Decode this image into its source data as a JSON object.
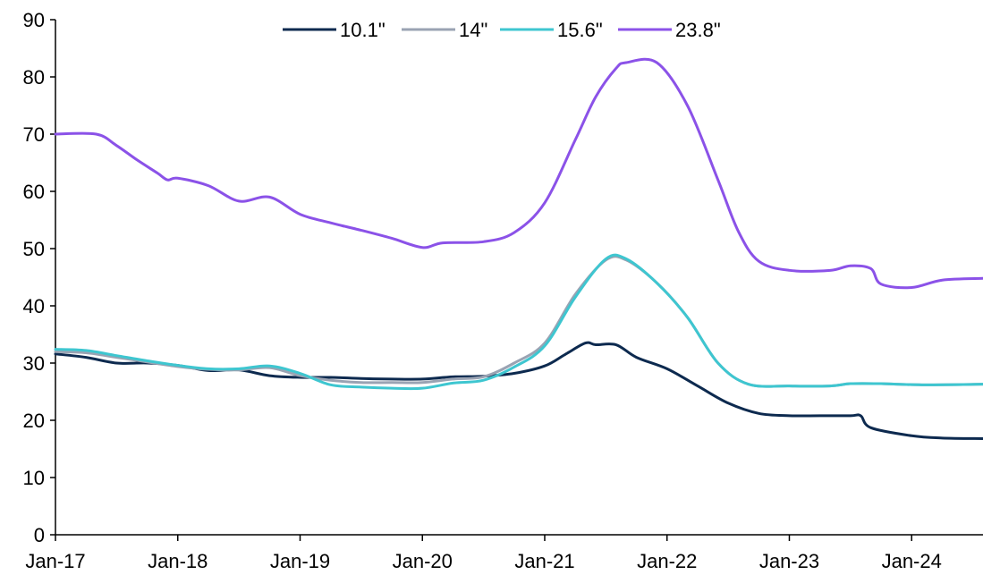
{
  "chart_data": {
    "type": "line",
    "title": "",
    "xlabel": "",
    "ylabel": "",
    "ylim": [
      0,
      90
    ],
    "yticks": [
      0,
      10,
      20,
      30,
      40,
      50,
      60,
      70,
      80,
      90
    ],
    "xlim": [
      "2017-01",
      "2024-08"
    ],
    "xticks": [
      "Jan-17",
      "Jan-18",
      "Jan-19",
      "Jan-20",
      "Jan-21",
      "Jan-22",
      "Jan-23",
      "Jan-24"
    ],
    "grid": false,
    "legend_position": "top",
    "series": [
      {
        "name": "10.1\"",
        "color": "#0d2a4f",
        "points": [
          [
            "2017-01",
            31.6
          ],
          [
            "2017-04",
            31.0
          ],
          [
            "2017-07",
            30.0
          ],
          [
            "2017-10",
            30.0
          ],
          [
            "2018-01",
            29.6
          ],
          [
            "2018-04",
            28.7
          ],
          [
            "2018-07",
            28.8
          ],
          [
            "2018-10",
            27.8
          ],
          [
            "2019-01",
            27.5
          ],
          [
            "2019-04",
            27.5
          ],
          [
            "2019-07",
            27.3
          ],
          [
            "2019-10",
            27.2
          ],
          [
            "2020-01",
            27.2
          ],
          [
            "2020-04",
            27.6
          ],
          [
            "2020-07",
            27.7
          ],
          [
            "2020-10",
            28.2
          ],
          [
            "2021-01",
            29.5
          ],
          [
            "2021-03",
            31.5
          ],
          [
            "2021-05",
            33.5
          ],
          [
            "2021-06",
            33.2
          ],
          [
            "2021-08",
            33.2
          ],
          [
            "2021-10",
            31.0
          ],
          [
            "2022-01",
            29.0
          ],
          [
            "2022-04",
            26.0
          ],
          [
            "2022-07",
            23.0
          ],
          [
            "2022-10",
            21.2
          ],
          [
            "2023-01",
            20.8
          ],
          [
            "2023-04",
            20.8
          ],
          [
            "2023-07",
            20.8
          ],
          [
            "2023-08",
            20.8
          ],
          [
            "2023-09",
            18.7
          ],
          [
            "2024-01",
            17.3
          ],
          [
            "2024-04",
            16.9
          ],
          [
            "2024-08",
            16.8
          ]
        ]
      },
      {
        "name": "14\"",
        "color": "#9aa3b3",
        "points": [
          [
            "2017-01",
            32.0
          ],
          [
            "2017-04",
            31.8
          ],
          [
            "2017-07",
            31.0
          ],
          [
            "2017-10",
            30.2
          ],
          [
            "2018-01",
            29.4
          ],
          [
            "2018-04",
            28.9
          ],
          [
            "2018-07",
            28.8
          ],
          [
            "2018-10",
            29.2
          ],
          [
            "2019-01",
            27.8
          ],
          [
            "2019-04",
            27.0
          ],
          [
            "2019-07",
            26.6
          ],
          [
            "2019-10",
            26.6
          ],
          [
            "2020-01",
            26.6
          ],
          [
            "2020-04",
            27.2
          ],
          [
            "2020-07",
            27.6
          ],
          [
            "2020-10",
            30.0
          ],
          [
            "2021-01",
            33.5
          ],
          [
            "2021-04",
            42.0
          ],
          [
            "2021-07",
            48.0
          ],
          [
            "2021-09",
            48.0
          ],
          [
            "2021-12",
            44.0
          ],
          [
            "2022-03",
            38.0
          ],
          [
            "2022-06",
            30.0
          ],
          [
            "2022-09",
            26.3
          ],
          [
            "2023-01",
            26.0
          ],
          [
            "2023-05",
            26.0
          ],
          [
            "2023-07",
            26.4
          ],
          [
            "2023-10",
            26.4
          ],
          [
            "2024-02",
            26.2
          ],
          [
            "2024-08",
            26.3
          ]
        ]
      },
      {
        "name": "15.6\"",
        "color": "#3ec6d0",
        "points": [
          [
            "2017-01",
            32.4
          ],
          [
            "2017-04",
            32.2
          ],
          [
            "2017-07",
            31.3
          ],
          [
            "2017-10",
            30.4
          ],
          [
            "2018-01",
            29.6
          ],
          [
            "2018-04",
            29.0
          ],
          [
            "2018-07",
            29.0
          ],
          [
            "2018-10",
            29.5
          ],
          [
            "2019-01",
            28.2
          ],
          [
            "2019-04",
            26.2
          ],
          [
            "2019-07",
            25.8
          ],
          [
            "2019-10",
            25.6
          ],
          [
            "2020-01",
            25.6
          ],
          [
            "2020-04",
            26.5
          ],
          [
            "2020-07",
            27.0
          ],
          [
            "2020-10",
            29.3
          ],
          [
            "2021-01",
            33.0
          ],
          [
            "2021-04",
            41.5
          ],
          [
            "2021-07",
            48.2
          ],
          [
            "2021-09",
            48.2
          ],
          [
            "2021-12",
            44.0
          ],
          [
            "2022-03",
            38.0
          ],
          [
            "2022-06",
            30.0
          ],
          [
            "2022-09",
            26.3
          ],
          [
            "2023-01",
            26.0
          ],
          [
            "2023-05",
            26.0
          ],
          [
            "2023-07",
            26.4
          ],
          [
            "2023-10",
            26.4
          ],
          [
            "2024-02",
            26.2
          ],
          [
            "2024-08",
            26.3
          ]
        ]
      },
      {
        "name": "23.8\"",
        "color": "#8b52e8",
        "points": [
          [
            "2017-01",
            70.0
          ],
          [
            "2017-05",
            70.0
          ],
          [
            "2017-07",
            68.0
          ],
          [
            "2017-09",
            65.5
          ],
          [
            "2017-11",
            63.2
          ],
          [
            "2017-12",
            62.0
          ],
          [
            "2018-01",
            62.3
          ],
          [
            "2018-04",
            61.0
          ],
          [
            "2018-07",
            58.3
          ],
          [
            "2018-10",
            59.0
          ],
          [
            "2019-01",
            56.0
          ],
          [
            "2019-04",
            54.5
          ],
          [
            "2019-07",
            53.2
          ],
          [
            "2019-10",
            51.8
          ],
          [
            "2020-01",
            50.2
          ],
          [
            "2020-03",
            51.0
          ],
          [
            "2020-07",
            51.2
          ],
          [
            "2020-10",
            52.8
          ],
          [
            "2021-01",
            58.0
          ],
          [
            "2021-04",
            69.0
          ],
          [
            "2021-06",
            76.5
          ],
          [
            "2021-08",
            81.5
          ],
          [
            "2021-09",
            82.5
          ],
          [
            "2021-12",
            82.5
          ],
          [
            "2022-03",
            75.0
          ],
          [
            "2022-06",
            62.0
          ],
          [
            "2022-08",
            53.0
          ],
          [
            "2022-10",
            47.8
          ],
          [
            "2023-01",
            46.2
          ],
          [
            "2023-05",
            46.2
          ],
          [
            "2023-07",
            47.0
          ],
          [
            "2023-09",
            46.5
          ],
          [
            "2023-10",
            43.8
          ],
          [
            "2024-01",
            43.2
          ],
          [
            "2024-04",
            44.5
          ],
          [
            "2024-08",
            44.8
          ]
        ]
      }
    ]
  }
}
